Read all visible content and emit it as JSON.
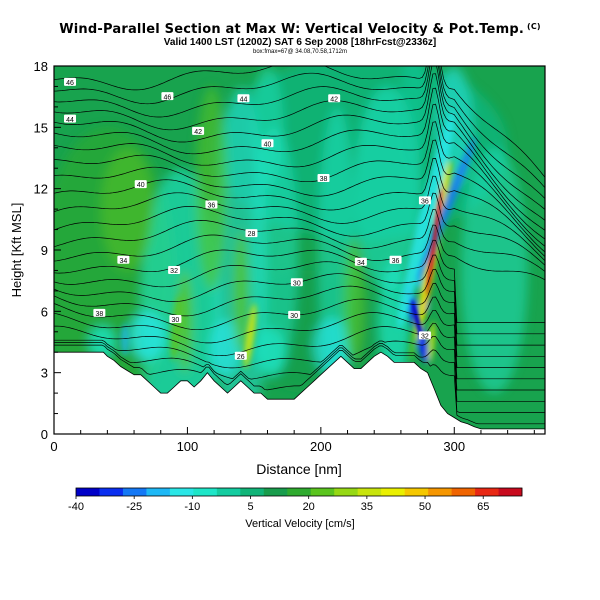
{
  "title": "Wind-Parallel Section at Max W: Vertical Velocity & Pot.Temp.",
  "title_mark": "(C)",
  "subtitle": "Valid 1400 LST (1200Z) SAT 6 Sep 2008 [18hrFcst@2336z]",
  "subtitle2": "box:fmax=67@ 34.08,70.58,1712m",
  "chart_data": {
    "type": "heatmap",
    "xlabel": "Distance [nm]",
    "ylabel": "Height [Kft MSL]",
    "xlim": [
      0,
      368
    ],
    "ylim": [
      0,
      18
    ],
    "x_ticks": [
      0,
      100,
      200,
      300
    ],
    "y_ticks": [
      0,
      3,
      6,
      9,
      12,
      15,
      18
    ],
    "colorbar": {
      "label": "Vertical Velocity [cm/s]",
      "range": [
        -40,
        75
      ],
      "tick_labels": [
        -40,
        -25,
        -10,
        5,
        20,
        35,
        50,
        65
      ],
      "colors": [
        "#0000c8",
        "#0a2ef0",
        "#1478f5",
        "#1eb8f5",
        "#2ae6e6",
        "#1ee6c8",
        "#14cca0",
        "#10b478",
        "#189c4c",
        "#2eaa2e",
        "#5ac41e",
        "#96d814",
        "#c8e40c",
        "#eaf000",
        "#f5c800",
        "#f59600",
        "#f06400",
        "#e82814",
        "#c80a1e"
      ]
    },
    "contour_field": "Potential Temperature",
    "contour_labels": [
      "46",
      "46",
      "44",
      "44",
      "42",
      "42",
      "40",
      "40",
      "38",
      "38",
      "36",
      "36",
      "36",
      "34",
      "34",
      "32",
      "32",
      "30",
      "30",
      "30",
      "28",
      "26"
    ],
    "terrain_profile": {
      "x": [
        0,
        10,
        20,
        30,
        37,
        40,
        45,
        50,
        55,
        60,
        65,
        70,
        75,
        80,
        85,
        90,
        95,
        100,
        105,
        110,
        115,
        120,
        125,
        130,
        135,
        140,
        145,
        150,
        155,
        160,
        165,
        170,
        175,
        180,
        185,
        190,
        195,
        200,
        205,
        210,
        215,
        220,
        225,
        230,
        235,
        240,
        245,
        250,
        255,
        260,
        265,
        270,
        275,
        280,
        285,
        290,
        295,
        300,
        305,
        310,
        315,
        320,
        330,
        340,
        350,
        368
      ],
      "y": [
        4.0,
        4.0,
        4.0,
        4.0,
        4.0,
        3.8,
        3.6,
        3.3,
        3.1,
        2.9,
        2.9,
        2.6,
        2.3,
        2.0,
        2.0,
        2.3,
        2.6,
        2.6,
        2.3,
        2.6,
        3.0,
        2.6,
        2.3,
        2.0,
        2.3,
        2.6,
        2.3,
        2.0,
        2.0,
        1.7,
        1.7,
        1.7,
        1.7,
        1.7,
        2.0,
        2.3,
        2.6,
        2.9,
        3.2,
        3.5,
        3.8,
        3.5,
        3.2,
        3.2,
        3.5,
        3.8,
        4.0,
        3.8,
        3.5,
        3.5,
        3.5,
        3.5,
        3.2,
        3.0,
        2.2,
        1.4,
        1.0,
        0.8,
        0.6,
        0.5,
        0.35,
        0.25,
        0.25,
        0.25,
        0.25,
        0.25
      ]
    },
    "updraft_core": {
      "x": 285,
      "y_range": [
        3.5,
        14
      ],
      "max_cm_s": 67
    },
    "downdraft_core": {
      "x": 272,
      "y_range": [
        3.5,
        7
      ],
      "min_cm_s": -40
    }
  }
}
